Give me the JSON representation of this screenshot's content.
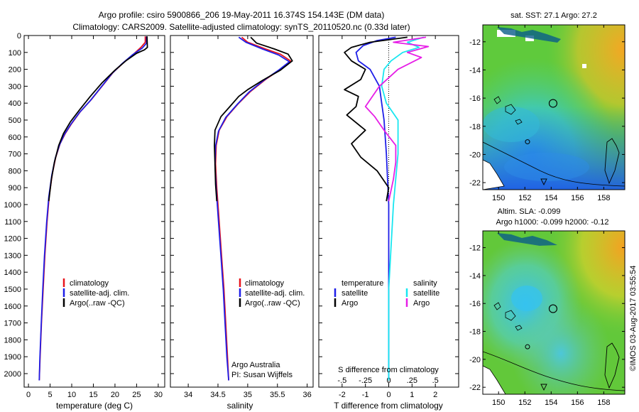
{
  "header": {
    "line1": "Argo profile: csiro 5900866_206 19-May-2011 16.374S 154.143E (DM data)",
    "line2": "Climatology: CARS2009. Satellite-adjusted climatology: synTS_20110520.nc (0.33d later)"
  },
  "colors": {
    "climatology": "#e8141c",
    "satellite": "#1e1ee8",
    "argo": "#000000",
    "sal_satellite": "#18e6f0",
    "sal_argo": "#e61ee6"
  },
  "chart_data": [
    {
      "type": "line",
      "name": "temperature",
      "xlabel": "temperature (deg C)",
      "xlim": [
        -1,
        31.5
      ],
      "xticks": [
        0,
        5,
        10,
        15,
        20,
        25,
        30
      ],
      "ylim": [
        0,
        2080
      ],
      "yticks": [
        0,
        100,
        200,
        300,
        400,
        500,
        600,
        700,
        800,
        900,
        1000,
        1100,
        1200,
        1300,
        1400,
        1500,
        1600,
        1700,
        1800,
        1900,
        2000
      ],
      "legend": [
        "climatology",
        "satellite-adj. clim.",
        "Argo(..raw -QC)"
      ],
      "series": [
        {
          "name": "climatology",
          "color_key": "climatology",
          "points": [
            [
              27.0,
              5
            ],
            [
              27.0,
              40
            ],
            [
              26.0,
              70
            ],
            [
              24.3,
              110
            ],
            [
              22.0,
              160
            ],
            [
              19.5,
              220
            ],
            [
              17.0,
              300
            ],
            [
              14.5,
              380
            ],
            [
              12.0,
              450
            ],
            [
              10.0,
              520
            ],
            [
              8.5,
              580
            ],
            [
              7.3,
              640
            ],
            [
              6.3,
              720
            ],
            [
              5.5,
              820
            ],
            [
              4.8,
              950
            ],
            [
              4.3,
              1100
            ],
            [
              3.8,
              1300
            ],
            [
              3.4,
              1500
            ],
            [
              3.0,
              1700
            ],
            [
              2.7,
              1900
            ],
            [
              2.5,
              2040
            ]
          ]
        },
        {
          "name": "satellite",
          "color_key": "satellite",
          "points": [
            [
              27.3,
              5
            ],
            [
              27.3,
              45
            ],
            [
              26.3,
              75
            ],
            [
              24.0,
              115
            ],
            [
              21.7,
              165
            ],
            [
              19.3,
              225
            ],
            [
              16.8,
              305
            ],
            [
              14.3,
              385
            ],
            [
              11.8,
              455
            ],
            [
              9.8,
              525
            ],
            [
              8.3,
              585
            ],
            [
              7.2,
              645
            ],
            [
              6.2,
              725
            ],
            [
              5.4,
              825
            ],
            [
              4.7,
              955
            ],
            [
              4.2,
              1105
            ],
            [
              3.7,
              1305
            ],
            [
              3.3,
              1505
            ],
            [
              2.95,
              1705
            ],
            [
              2.65,
              1905
            ],
            [
              2.5,
              2040
            ]
          ]
        },
        {
          "name": "Argo",
          "color_key": "argo",
          "points": [
            [
              27.4,
              5
            ],
            [
              27.5,
              70
            ],
            [
              26.8,
              85
            ],
            [
              25.0,
              105
            ],
            [
              22.5,
              150
            ],
            [
              20.0,
              205
            ],
            [
              17.0,
              280
            ],
            [
              14.3,
              360
            ],
            [
              11.8,
              440
            ],
            [
              9.7,
              510
            ],
            [
              8.1,
              580
            ],
            [
              7.0,
              650
            ],
            [
              6.0,
              750
            ],
            [
              5.3,
              850
            ],
            [
              4.7,
              980
            ]
          ]
        }
      ]
    },
    {
      "type": "line",
      "name": "salinity",
      "xlabel": "salinity",
      "xlim": [
        33.7,
        36.1
      ],
      "xticks": [
        34,
        34.5,
        35,
        35.5,
        36
      ],
      "ylim": [
        0,
        2080
      ],
      "legend": [
        "climatology",
        "satellite-adj. clim.",
        "Argo(..raw -QC)"
      ],
      "annotation": [
        "Argo Australia",
        "PI: Susan Wijffels"
      ],
      "series": [
        {
          "name": "climatology",
          "color_key": "climatology",
          "points": [
            [
              34.9,
              10
            ],
            [
              35.0,
              40
            ],
            [
              35.3,
              80
            ],
            [
              35.55,
              110
            ],
            [
              35.72,
              150
            ],
            [
              35.55,
              200
            ],
            [
              35.3,
              260
            ],
            [
              35.05,
              330
            ],
            [
              34.85,
              400
            ],
            [
              34.65,
              480
            ],
            [
              34.52,
              560
            ],
            [
              34.47,
              650
            ],
            [
              34.46,
              760
            ],
            [
              34.48,
              900
            ],
            [
              34.52,
              1100
            ],
            [
              34.56,
              1300
            ],
            [
              34.6,
              1500
            ],
            [
              34.63,
              1700
            ],
            [
              34.66,
              1900
            ],
            [
              34.68,
              2040
            ]
          ]
        },
        {
          "name": "satellite",
          "color_key": "satellite",
          "points": [
            [
              34.85,
              10
            ],
            [
              34.97,
              40
            ],
            [
              35.25,
              80
            ],
            [
              35.52,
              115
            ],
            [
              35.7,
              155
            ],
            [
              35.52,
              205
            ],
            [
              35.27,
              265
            ],
            [
              35.02,
              335
            ],
            [
              34.83,
              405
            ],
            [
              34.63,
              485
            ],
            [
              34.51,
              565
            ],
            [
              34.46,
              655
            ],
            [
              34.45,
              765
            ],
            [
              34.47,
              905
            ],
            [
              34.51,
              1105
            ],
            [
              34.55,
              1305
            ],
            [
              34.59,
              1505
            ],
            [
              34.62,
              1705
            ],
            [
              34.65,
              1905
            ],
            [
              34.68,
              2040
            ]
          ]
        },
        {
          "name": "Argo",
          "color_key": "argo",
          "points": [
            [
              35.05,
              10
            ],
            [
              35.15,
              45
            ],
            [
              35.45,
              80
            ],
            [
              35.68,
              110
            ],
            [
              35.75,
              150
            ],
            [
              35.55,
              205
            ],
            [
              35.25,
              265
            ],
            [
              35.0,
              320
            ],
            [
              34.85,
              360
            ],
            [
              34.7,
              420
            ],
            [
              34.55,
              480
            ],
            [
              34.45,
              560
            ],
            [
              34.44,
              650
            ],
            [
              34.45,
              760
            ],
            [
              34.46,
              880
            ],
            [
              34.48,
              980
            ]
          ]
        }
      ]
    },
    {
      "type": "line",
      "name": "difference",
      "xlabel": "T difference from climatology",
      "xlabel_top": "S difference from climatology",
      "xlim": [
        -3,
        3
      ],
      "xticks": [
        -2,
        -1,
        0,
        1,
        2
      ],
      "sticks": [
        -0.5,
        -0.25,
        0,
        0.25,
        0.5
      ],
      "s_scale": 4,
      "ylim": [
        0,
        2080
      ],
      "legend_title_t": "temperature",
      "legend_title_s": "salinity",
      "legend_t": [
        "satellite",
        "Argo"
      ],
      "legend_s": [
        "satellite",
        "Argo"
      ],
      "series": [
        {
          "name": "T satellite",
          "color_key": "satellite",
          "points": [
            [
              0.3,
              10
            ],
            [
              -0.5,
              30
            ],
            [
              -1.1,
              60
            ],
            [
              -1.4,
              100
            ],
            [
              -1.3,
              150
            ],
            [
              -0.8,
              200
            ],
            [
              -0.4,
              300
            ],
            [
              -0.3,
              400
            ],
            [
              -0.2,
              500
            ],
            [
              -0.1,
              700
            ],
            [
              0,
              1000
            ],
            [
              0,
              1500
            ],
            [
              0,
              2040
            ]
          ]
        },
        {
          "name": "T Argo",
          "color_key": "argo",
          "points": [
            [
              0.8,
              10
            ],
            [
              -0.8,
              40
            ],
            [
              -1.6,
              70
            ],
            [
              -1.9,
              100
            ],
            [
              -1.6,
              150
            ],
            [
              -1.0,
              200
            ],
            [
              -1.2,
              260
            ],
            [
              -1.9,
              320
            ],
            [
              -1.3,
              360
            ],
            [
              -1.4,
              420
            ],
            [
              -1.8,
              470
            ],
            [
              -1.0,
              560
            ],
            [
              -1.6,
              640
            ],
            [
              -1.2,
              720
            ],
            [
              -0.5,
              800
            ],
            [
              0,
              900
            ],
            [
              -0.1,
              980
            ]
          ]
        },
        {
          "name": "S satellite",
          "color_key": "sal_satellite",
          "points": [
            [
              1.5,
              10
            ],
            [
              0.8,
              40
            ],
            [
              1.3,
              70
            ],
            [
              0.6,
              100
            ],
            [
              0.1,
              150
            ],
            [
              -0.2,
              200
            ],
            [
              -0.3,
              300
            ],
            [
              -0.1,
              400
            ],
            [
              0.4,
              500
            ],
            [
              0.4,
              700
            ],
            [
              0.2,
              1000
            ],
            [
              0,
              1500
            ],
            [
              0,
              2040
            ]
          ]
        },
        {
          "name": "S Argo",
          "color_key": "sal_argo",
          "points": [
            [
              1.6,
              10
            ],
            [
              0.2,
              40
            ],
            [
              1.7,
              65
            ],
            [
              0.8,
              100
            ],
            [
              1.4,
              130
            ],
            [
              0.4,
              200
            ],
            [
              -0.4,
              300
            ],
            [
              -1.0,
              420
            ],
            [
              -0.6,
              480
            ],
            [
              -0.2,
              560
            ],
            [
              0.3,
              650
            ],
            [
              0.3,
              750
            ],
            [
              0.2,
              850
            ],
            [
              0,
              980
            ]
          ]
        }
      ]
    }
  ],
  "maps": {
    "sst": {
      "title": "sat. SST: 27.1  Argo: 27.2",
      "xticks": [
        150,
        152,
        154,
        156,
        158
      ],
      "yticks": [
        -12,
        -14,
        -16,
        -18,
        -20,
        -22
      ],
      "xlim": [
        148.8,
        159.6
      ],
      "ylim": [
        -22.5,
        -10.8
      ]
    },
    "sla": {
      "title1": "Altim. SLA: -0.099",
      "title2": "Argo h1000: -0.099 h2000: -0.12",
      "xticks": [
        150,
        152,
        154,
        156,
        158
      ],
      "yticks": [
        -12,
        -14,
        -16,
        -18,
        -20,
        -22
      ],
      "xlim": [
        148.8,
        159.6
      ],
      "ylim": [
        -22.5,
        -10.8
      ]
    },
    "argo_position": [
      154.143,
      -16.374
    ],
    "small_marker": [
      152.2,
      -19.1
    ]
  },
  "footer": {
    "credit": "©IMOS 03-Aug-2017 03:55:54"
  }
}
